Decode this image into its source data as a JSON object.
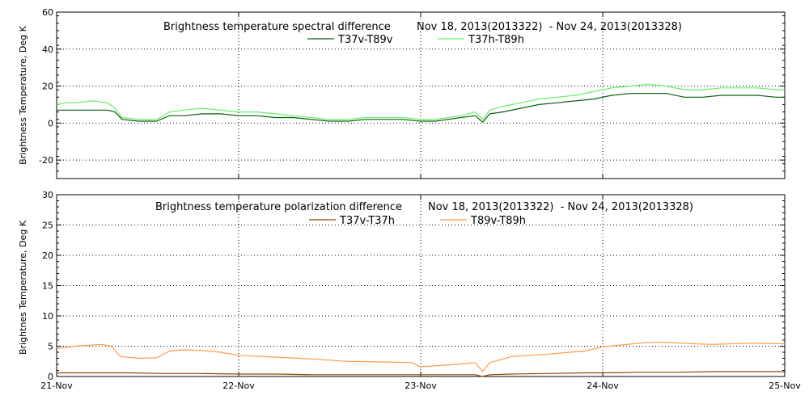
{
  "chart_data": [
    {
      "type": "line",
      "title": "Brightness temperature spectral difference",
      "date_range": "Nov 18, 2013(2013322)  - Nov 24, 2013(2013328)",
      "ylabel": "Brightness Temperature, Deg K",
      "ylim": [
        -30,
        60
      ],
      "yticks": [
        -20,
        0,
        20,
        40,
        60
      ],
      "x_tick_labels": [
        "21-Nov",
        "22-Nov",
        "23-Nov",
        "24-Nov",
        "25-Nov"
      ],
      "xlim_days": [
        21,
        25
      ],
      "grid": "dotted",
      "legend_placement": "top-center",
      "series": [
        {
          "name": "T37v-T89v",
          "color": "#0a5e0a",
          "x": [
            21.0,
            21.05,
            21.1,
            21.2,
            21.28,
            21.32,
            21.36,
            21.45,
            21.55,
            21.62,
            21.7,
            21.8,
            21.9,
            22.0,
            22.1,
            22.2,
            22.3,
            22.4,
            22.5,
            22.6,
            22.7,
            22.8,
            22.9,
            23.0,
            23.08,
            23.15,
            23.22,
            23.3,
            23.34,
            23.38,
            23.45,
            23.55,
            23.65,
            23.75,
            23.85,
            23.95,
            24.05,
            24.15,
            24.25,
            24.35,
            24.45,
            24.55,
            24.65,
            24.75,
            24.85,
            24.95,
            25.0
          ],
          "y": [
            7,
            7,
            7,
            7,
            7,
            6,
            2,
            1,
            1,
            4,
            4,
            5,
            5,
            4,
            4,
            3,
            3,
            2,
            1,
            1,
            2,
            2,
            2,
            1,
            1,
            2,
            3,
            4,
            0.5,
            5,
            6,
            8,
            10,
            11,
            12,
            13,
            15,
            16,
            16,
            16,
            14,
            14,
            15,
            15,
            15,
            14,
            14
          ]
        },
        {
          "name": "T37h-T89h",
          "color": "#66ee66",
          "x": [
            21.0,
            21.05,
            21.1,
            21.2,
            21.28,
            21.32,
            21.36,
            21.45,
            21.55,
            21.62,
            21.7,
            21.8,
            21.9,
            22.0,
            22.1,
            22.2,
            22.3,
            22.4,
            22.5,
            22.6,
            22.7,
            22.8,
            22.9,
            23.0,
            23.08,
            23.15,
            23.22,
            23.3,
            23.34,
            23.38,
            23.45,
            23.55,
            23.65,
            23.75,
            23.85,
            23.95,
            24.05,
            24.15,
            24.25,
            24.35,
            24.45,
            24.55,
            24.65,
            24.75,
            24.85,
            24.95,
            25.0
          ],
          "y": [
            10,
            11,
            11,
            12,
            11,
            8,
            3,
            2,
            2,
            6,
            7,
            8,
            7,
            6,
            6,
            5,
            4,
            3,
            2,
            2,
            3,
            3,
            3,
            2,
            2,
            3,
            4,
            6,
            2,
            7,
            9,
            11,
            13,
            14,
            15,
            17,
            19,
            20,
            21,
            20,
            18,
            18,
            19,
            19,
            19,
            18,
            18
          ]
        }
      ]
    },
    {
      "type": "line",
      "title": "Brightness temperature polarization difference",
      "date_range": "Nov 18, 2013(2013322)  - Nov 24, 2013(2013328)",
      "ylabel": "Brightnes Temperature, Deg K",
      "ylim": [
        0,
        30
      ],
      "yticks": [
        0,
        5,
        10,
        15,
        20,
        25,
        30
      ],
      "x_tick_labels": [
        "21-Nov",
        "22-Nov",
        "23-Nov",
        "24-Nov",
        "25-Nov"
      ],
      "xlim_days": [
        21,
        25
      ],
      "grid": "dotted",
      "legend_placement": "top-center",
      "series": [
        {
          "name": "T37v-T37h",
          "color": "#8b4a00",
          "x": [
            21.0,
            21.2,
            21.4,
            21.6,
            21.8,
            22.0,
            22.2,
            22.4,
            22.6,
            22.8,
            23.0,
            23.15,
            23.3,
            23.34,
            23.38,
            23.5,
            23.7,
            23.9,
            24.0,
            24.2,
            24.4,
            24.6,
            24.8,
            25.0
          ],
          "y": [
            0.6,
            0.6,
            0.6,
            0.5,
            0.5,
            0.4,
            0.4,
            0.3,
            0.3,
            0.3,
            0.3,
            0.3,
            0.3,
            0.0,
            0.3,
            0.4,
            0.5,
            0.6,
            0.6,
            0.7,
            0.7,
            0.8,
            0.8,
            0.8
          ]
        },
        {
          "name": "T89v-T89h",
          "color": "#ff9b44",
          "x": [
            21.0,
            21.1,
            21.25,
            21.3,
            21.35,
            21.45,
            21.55,
            21.62,
            21.7,
            21.8,
            21.9,
            22.0,
            22.2,
            22.4,
            22.6,
            22.8,
            22.95,
            23.0,
            23.1,
            23.2,
            23.3,
            23.34,
            23.38,
            23.5,
            23.7,
            23.9,
            24.0,
            24.2,
            24.3,
            24.5,
            24.6,
            24.8,
            25.0
          ],
          "y": [
            4.6,
            5.0,
            5.3,
            5.0,
            3.3,
            3.0,
            3.1,
            4.2,
            4.4,
            4.3,
            4.0,
            3.5,
            3.2,
            2.9,
            2.5,
            2.4,
            2.3,
            1.6,
            1.8,
            2.0,
            2.3,
            0.8,
            2.3,
            3.3,
            3.7,
            4.2,
            4.9,
            5.5,
            5.7,
            5.4,
            5.3,
            5.5,
            5.4
          ]
        }
      ]
    }
  ]
}
